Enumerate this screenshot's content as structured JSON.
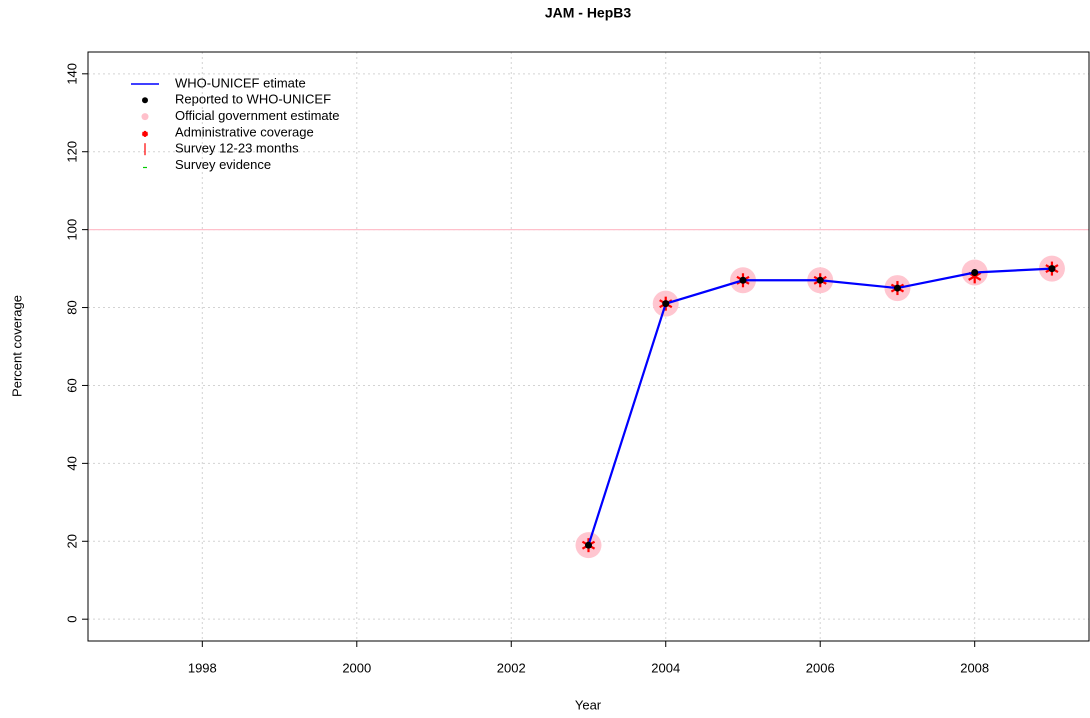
{
  "chart_data": {
    "type": "line",
    "title": "JAM  -  HepB3",
    "x_label": "Year",
    "y_label": "Percent coverage",
    "x": [
      2003,
      2004,
      2005,
      2006,
      2007,
      2008,
      2009
    ],
    "series": [
      {
        "name": "WHO-UNICEF etimate",
        "color": "#0000ff",
        "symbol": "line",
        "values": [
          19,
          81,
          87,
          87,
          85,
          89,
          90
        ]
      },
      {
        "name": "Reported to WHO-UNICEF",
        "color": "#000000",
        "symbol": "dot",
        "values": [
          19,
          81,
          87,
          87,
          85,
          89,
          90
        ]
      },
      {
        "name": "Official government estimate",
        "color": "#ffc0cb",
        "symbol": "circle",
        "values": [
          19,
          81,
          87,
          87,
          85,
          89,
          90
        ]
      },
      {
        "name": "Administrative coverage",
        "color": "#ff0000",
        "symbol": "asterisk",
        "values": [
          19,
          81,
          87,
          87,
          85,
          88,
          90
        ]
      },
      {
        "name": "Survey 12-23 months",
        "color": "#ff0000",
        "symbol": "bar",
        "values": [
          null,
          null,
          null,
          null,
          null,
          null,
          null
        ]
      },
      {
        "name": "Survey evidence",
        "color": "#00cc00",
        "symbol": "dash",
        "values": [
          null,
          null,
          null,
          null,
          null,
          null,
          null
        ]
      }
    ],
    "xlim": [
      1996.52,
      2009.48
    ],
    "ylim": [
      -5.6,
      145.6
    ],
    "xticks": [
      1998,
      2000,
      2002,
      2004,
      2006,
      2008
    ],
    "yticks": [
      0,
      20,
      40,
      60,
      80,
      100,
      120,
      140
    ],
    "hline": {
      "value": 100,
      "color": "#ffc0cb"
    },
    "grid": true,
    "legend": "top-left"
  }
}
